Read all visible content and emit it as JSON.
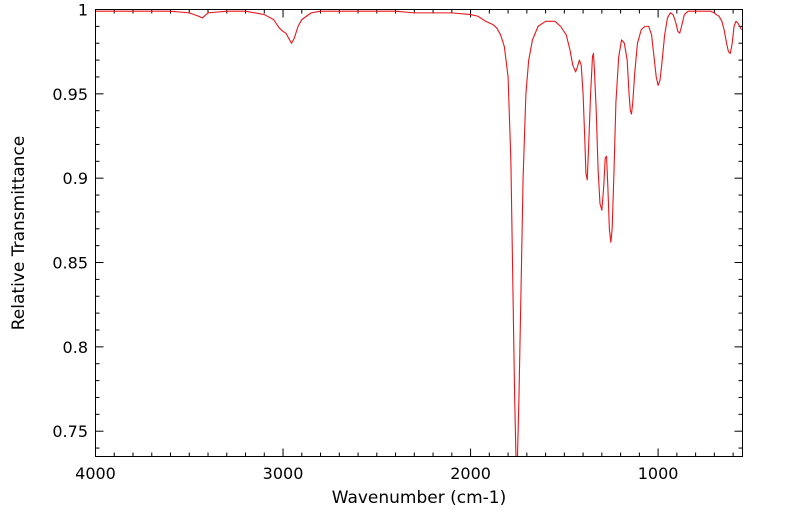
{
  "chart_data": {
    "type": "line",
    "title": "",
    "xlabel": "Wavenumber (cm-1)",
    "ylabel": "Relative Transmittance",
    "xlim": [
      4000,
      550
    ],
    "ylim": [
      0.735,
      1.0
    ],
    "x_reversed": true,
    "grid": false,
    "legend": "none",
    "x_ticks": [
      {
        "value": 4000,
        "label": "4000"
      },
      {
        "value": 3000,
        "label": "3000"
      },
      {
        "value": 2000,
        "label": "2000"
      },
      {
        "value": 1000,
        "label": "1000"
      }
    ],
    "y_ticks": [
      {
        "value": 1.0,
        "label": "1"
      },
      {
        "value": 0.95,
        "label": "0.95"
      },
      {
        "value": 0.9,
        "label": "0.9"
      },
      {
        "value": 0.85,
        "label": "0.85"
      },
      {
        "value": 0.8,
        "label": "0.8"
      },
      {
        "value": 0.75,
        "label": "0.75"
      }
    ],
    "series": [
      {
        "color": "#e8161b",
        "points": [
          [
            4000,
            0.999
          ],
          [
            3800,
            0.999
          ],
          [
            3600,
            0.999
          ],
          [
            3500,
            0.998
          ],
          [
            3450,
            0.996
          ],
          [
            3430,
            0.995
          ],
          [
            3400,
            0.998
          ],
          [
            3300,
            0.999
          ],
          [
            3200,
            0.999
          ],
          [
            3100,
            0.997
          ],
          [
            3050,
            0.994
          ],
          [
            3020,
            0.989
          ],
          [
            3000,
            0.987
          ],
          [
            2985,
            0.986
          ],
          [
            2970,
            0.983
          ],
          [
            2955,
            0.98
          ],
          [
            2940,
            0.983
          ],
          [
            2920,
            0.99
          ],
          [
            2900,
            0.994
          ],
          [
            2850,
            0.998
          ],
          [
            2800,
            0.999
          ],
          [
            2600,
            0.999
          ],
          [
            2400,
            0.999
          ],
          [
            2300,
            0.998
          ],
          [
            2200,
            0.998
          ],
          [
            2100,
            0.998
          ],
          [
            2000,
            0.997
          ],
          [
            1960,
            0.996
          ],
          [
            1920,
            0.993
          ],
          [
            1880,
            0.991
          ],
          [
            1860,
            0.989
          ],
          [
            1840,
            0.985
          ],
          [
            1820,
            0.978
          ],
          [
            1800,
            0.96
          ],
          [
            1785,
            0.91
          ],
          [
            1775,
            0.84
          ],
          [
            1765,
            0.77
          ],
          [
            1758,
            0.735
          ],
          [
            1750,
            0.735
          ],
          [
            1742,
            0.77
          ],
          [
            1730,
            0.84
          ],
          [
            1720,
            0.9
          ],
          [
            1705,
            0.95
          ],
          [
            1690,
            0.97
          ],
          [
            1670,
            0.982
          ],
          [
            1640,
            0.99
          ],
          [
            1600,
            0.993
          ],
          [
            1550,
            0.993
          ],
          [
            1520,
            0.99
          ],
          [
            1490,
            0.985
          ],
          [
            1470,
            0.976
          ],
          [
            1455,
            0.967
          ],
          [
            1440,
            0.963
          ],
          [
            1430,
            0.966
          ],
          [
            1420,
            0.97
          ],
          [
            1410,
            0.967
          ],
          [
            1400,
            0.95
          ],
          [
            1390,
            0.92
          ],
          [
            1385,
            0.903
          ],
          [
            1378,
            0.899
          ],
          [
            1370,
            0.92
          ],
          [
            1360,
            0.95
          ],
          [
            1350,
            0.972
          ],
          [
            1345,
            0.974
          ],
          [
            1340,
            0.965
          ],
          [
            1330,
            0.94
          ],
          [
            1320,
            0.905
          ],
          [
            1310,
            0.885
          ],
          [
            1300,
            0.881
          ],
          [
            1290,
            0.895
          ],
          [
            1282,
            0.912
          ],
          [
            1275,
            0.913
          ],
          [
            1268,
            0.895
          ],
          [
            1260,
            0.87
          ],
          [
            1252,
            0.862
          ],
          [
            1245,
            0.87
          ],
          [
            1235,
            0.905
          ],
          [
            1225,
            0.945
          ],
          [
            1210,
            0.972
          ],
          [
            1195,
            0.982
          ],
          [
            1180,
            0.98
          ],
          [
            1165,
            0.97
          ],
          [
            1155,
            0.95
          ],
          [
            1148,
            0.94
          ],
          [
            1142,
            0.938
          ],
          [
            1135,
            0.945
          ],
          [
            1125,
            0.962
          ],
          [
            1110,
            0.98
          ],
          [
            1090,
            0.988
          ],
          [
            1070,
            0.99
          ],
          [
            1050,
            0.99
          ],
          [
            1035,
            0.985
          ],
          [
            1020,
            0.97
          ],
          [
            1010,
            0.96
          ],
          [
            1000,
            0.955
          ],
          [
            990,
            0.958
          ],
          [
            980,
            0.968
          ],
          [
            965,
            0.985
          ],
          [
            950,
            0.995
          ],
          [
            935,
            0.998
          ],
          [
            920,
            0.997
          ],
          [
            905,
            0.992
          ],
          [
            895,
            0.987
          ],
          [
            885,
            0.986
          ],
          [
            875,
            0.99
          ],
          [
            860,
            0.997
          ],
          [
            840,
            0.999
          ],
          [
            800,
            0.999
          ],
          [
            750,
            0.999
          ],
          [
            720,
            0.999
          ],
          [
            700,
            0.998
          ],
          [
            690,
            0.997
          ],
          [
            675,
            0.996
          ],
          [
            660,
            0.993
          ],
          [
            648,
            0.988
          ],
          [
            635,
            0.98
          ],
          [
            625,
            0.975
          ],
          [
            615,
            0.974
          ],
          [
            605,
            0.98
          ],
          [
            595,
            0.99
          ],
          [
            585,
            0.993
          ],
          [
            575,
            0.992
          ],
          [
            565,
            0.99
          ],
          [
            555,
            0.988
          ]
        ]
      }
    ]
  }
}
